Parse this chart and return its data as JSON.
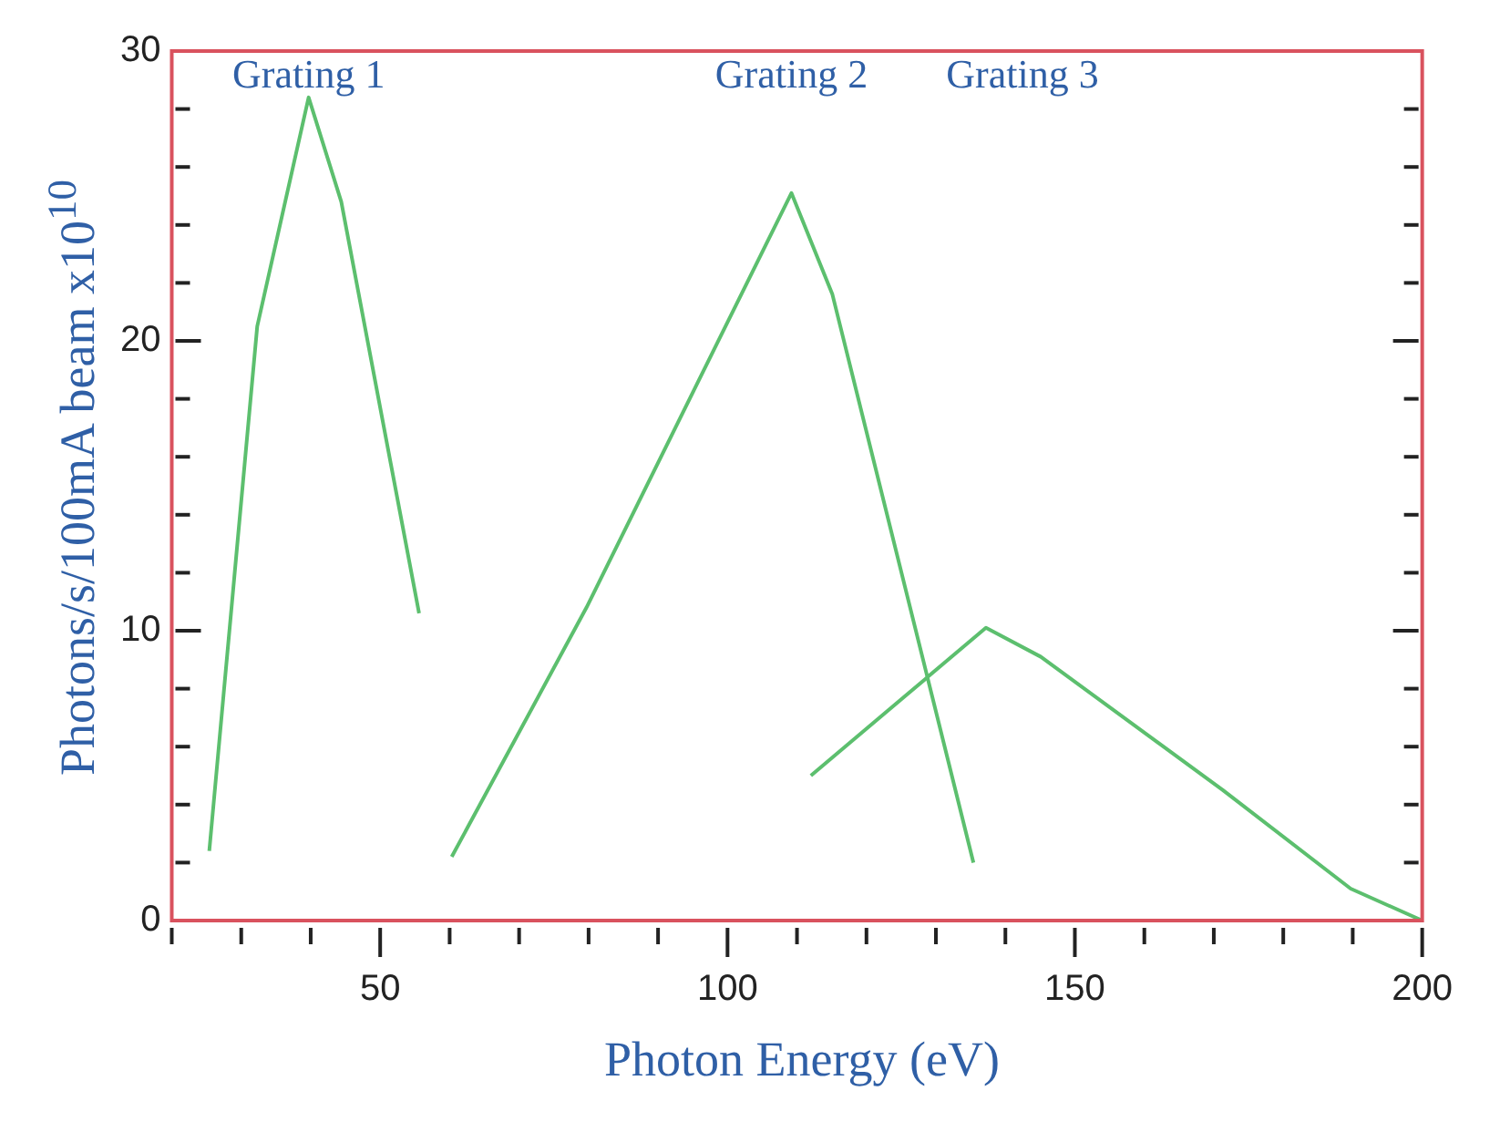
{
  "chart_data": {
    "type": "line",
    "xlabel": "Photon Energy (eV)",
    "ylabel": "Photons/s/100mA beam x10$^{10}$",
    "xlim": [
      20,
      200
    ],
    "ylim": [
      0,
      30
    ],
    "xticks": [
      {
        "value": 20,
        "label": null
      },
      {
        "value": 30,
        "label": null
      },
      {
        "value": 40,
        "label": null
      },
      50,
      {
        "value": 60,
        "label": null
      },
      {
        "value": 70,
        "label": null
      },
      {
        "value": 80,
        "label": null
      },
      {
        "value": 90,
        "label": null
      },
      100,
      {
        "value": 110,
        "label": null
      },
      {
        "value": 120,
        "label": null
      },
      {
        "value": 130,
        "label": null
      },
      {
        "value": 140,
        "label": null
      },
      150,
      {
        "value": 160,
        "label": null
      },
      {
        "value": 170,
        "label": null
      },
      {
        "value": 180,
        "label": null
      },
      {
        "value": 190,
        "label": null
      },
      200
    ],
    "yticks": [
      0,
      {
        "value": 2,
        "label": null
      },
      {
        "value": 4,
        "label": null
      },
      {
        "value": 6,
        "label": null
      },
      {
        "value": 8,
        "label": null
      },
      10,
      {
        "value": 12,
        "label": null
      },
      {
        "value": 14,
        "label": null
      },
      {
        "value": 16,
        "label": null
      },
      {
        "value": 18,
        "label": null
      },
      20,
      {
        "value": 22,
        "label": null
      },
      {
        "value": 24,
        "label": null
      },
      {
        "value": 26,
        "label": null
      },
      {
        "value": 28,
        "label": null
      },
      30
    ],
    "series": [
      {
        "color": "#5cbf6e",
        "x": [
          25.4,
          32.3,
          39.7,
          44.4,
          55.6
        ],
        "values": [
          2.4,
          20.5,
          28.4,
          24.8,
          10.6
        ]
      },
      {
        "color": "#5cbf6e",
        "x": [
          60.3,
          79.7,
          109.2,
          115.1,
          135.4
        ],
        "values": [
          2.2,
          10.8,
          25.1,
          21.6,
          2.0
        ]
      },
      {
        "color": "#5cbf6e",
        "x": [
          112,
          137.2,
          145.1,
          171.3,
          189.7,
          200
        ],
        "values": [
          5.0,
          10.1,
          9.1,
          4.5,
          1.1,
          0
        ]
      }
    ],
    "annotations": [
      "Grating 1",
      "Grating 2",
      "Grating 3"
    ],
    "marker": "none",
    "line_style": "solid",
    "grid": false,
    "legend": false
  }
}
